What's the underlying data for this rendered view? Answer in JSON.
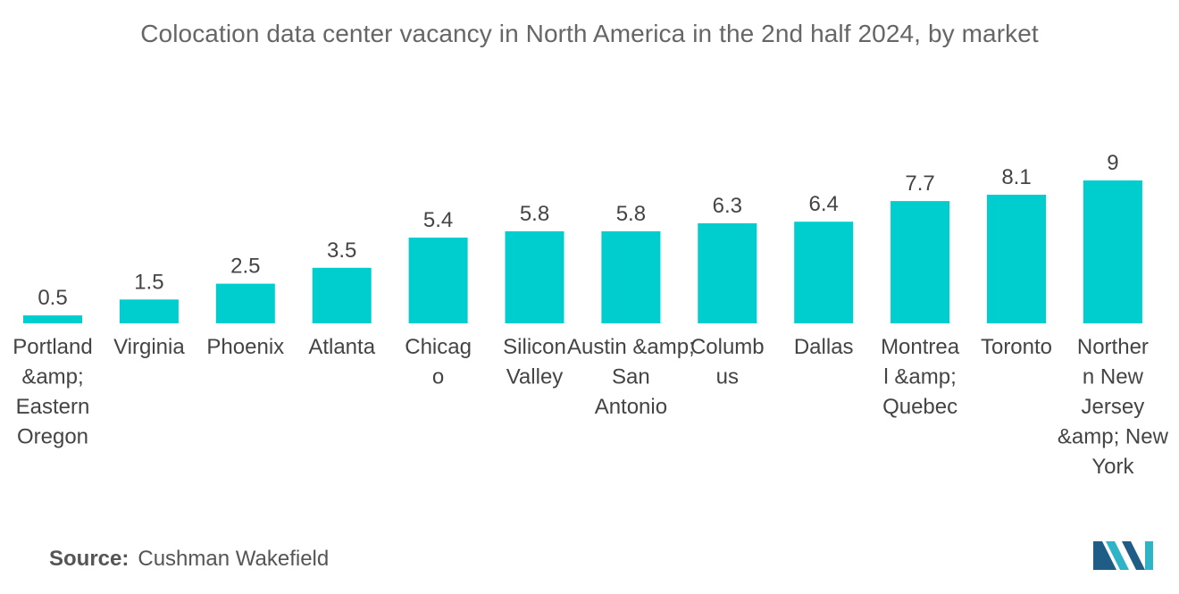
{
  "chart_data": {
    "type": "bar",
    "title": "Colocation data center vacancy in North America in the 2nd half 2024, by market",
    "categories": [
      "Portland &amp; Eastern Oregon",
      "Virginia",
      "Phoenix",
      "Atlanta",
      "Chicago",
      "Silicon Valley",
      "Austin &amp; San Antonio",
      "Columbus",
      "Dallas",
      "Montreal &amp; Quebec",
      "Toronto",
      "Northern New Jersey &amp; New York"
    ],
    "category_lines": [
      [
        "Portland",
        "&amp;",
        "Eastern",
        "Oregon"
      ],
      [
        "Virginia"
      ],
      [
        "Phoenix"
      ],
      [
        "Atlanta"
      ],
      [
        "Chicag",
        "o"
      ],
      [
        "Silicon",
        "Valley"
      ],
      [
        "Austin &amp;",
        "San",
        "Antonio"
      ],
      [
        "Columb",
        "us"
      ],
      [
        "Dallas"
      ],
      [
        "Montrea",
        "l &amp;",
        "Quebec"
      ],
      [
        "Toronto"
      ],
      [
        "Norther",
        "n New",
        "Jersey",
        "&amp; New",
        "York"
      ]
    ],
    "values": [
      0.5,
      1.5,
      2.5,
      3.5,
      5.4,
      5.8,
      5.8,
      6.3,
      6.4,
      7.7,
      8.1,
      9
    ],
    "value_labels": [
      "0.5",
      "1.5",
      "2.5",
      "3.5",
      "5.4",
      "5.8",
      "5.8",
      "6.3",
      "6.4",
      "7.7",
      "8.1",
      "9"
    ],
    "xlabel": "",
    "ylabel": "",
    "ylim": [
      0,
      9
    ],
    "grid": false,
    "color": "#00CDCE"
  },
  "source": {
    "label": "Source:",
    "text": "Cushman Wakefield"
  },
  "logo": {
    "name": "mordor-intelligence-logo",
    "colors": [
      "#1F5C86",
      "#2FB3C6"
    ]
  }
}
